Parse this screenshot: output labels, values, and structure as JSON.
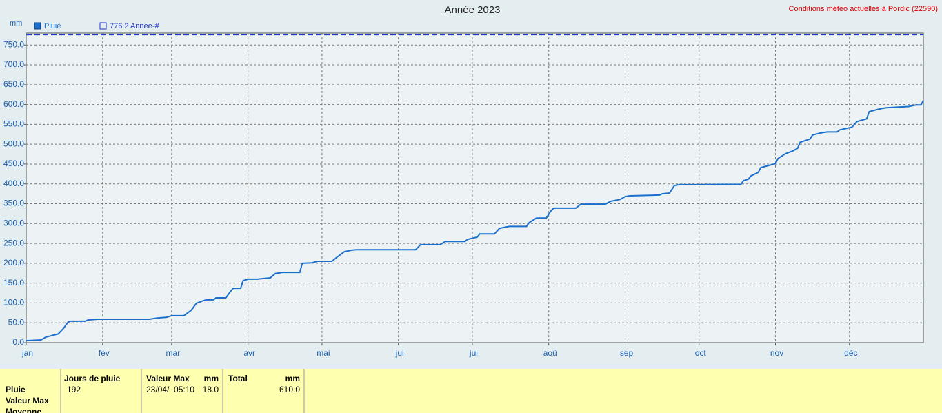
{
  "chart_data": {
    "type": "line",
    "title": "Année 2023",
    "y_label": "mm",
    "xlim": [
      0,
      364
    ],
    "xticks": [
      {
        "value": 0,
        "label": "jan"
      },
      {
        "value": 31,
        "label": "fév"
      },
      {
        "value": 59,
        "label": "mar"
      },
      {
        "value": 90,
        "label": "avr"
      },
      {
        "value": 120,
        "label": "mai"
      },
      {
        "value": 151,
        "label": "jui"
      },
      {
        "value": 181,
        "label": "jui"
      },
      {
        "value": 212,
        "label": "aoû"
      },
      {
        "value": 243,
        "label": "sep"
      },
      {
        "value": 273,
        "label": "oct"
      },
      {
        "value": 304,
        "label": "nov"
      },
      {
        "value": 334,
        "label": "déc"
      }
    ],
    "ylim": [
      0,
      780
    ],
    "yticks": [
      {
        "value": 0,
        "label": "0.0"
      },
      {
        "value": 50,
        "label": "50.0"
      },
      {
        "value": 100,
        "label": "100.0"
      },
      {
        "value": 150,
        "label": "150.0"
      },
      {
        "value": 200,
        "label": "200.0"
      },
      {
        "value": 250,
        "label": "250.0"
      },
      {
        "value": 300,
        "label": "300.0"
      },
      {
        "value": 350,
        "label": "350.0"
      },
      {
        "value": 400,
        "label": "400.0"
      },
      {
        "value": 450,
        "label": "450.0"
      },
      {
        "value": 500,
        "label": "500.0"
      },
      {
        "value": 550,
        "label": "550.0"
      },
      {
        "value": 600,
        "label": "600.0"
      },
      {
        "value": 650,
        "label": "650.0"
      },
      {
        "value": 700,
        "label": "700.0"
      },
      {
        "value": 750,
        "label": "750.0"
      }
    ],
    "grid": true,
    "series": [
      {
        "name": "Pluie",
        "color": "#1a6fcc",
        "dashed": false,
        "x": [
          0,
          6,
          8,
          13,
          15,
          17,
          18,
          24,
          25,
          29,
          50,
          53,
          57,
          59,
          64,
          67,
          69,
          71,
          73,
          76,
          77,
          81,
          83,
          84,
          87,
          88,
          90,
          94,
          95,
          99,
          101,
          104,
          111,
          112,
          116,
          118,
          124,
          126,
          129,
          132,
          134,
          158,
          160,
          168,
          170,
          178,
          179,
          183,
          184,
          190,
          192,
          196,
          203,
          204,
          207,
          211,
          213,
          214,
          223,
          225,
          235,
          237,
          241,
          243,
          245,
          257,
          258,
          261,
          263,
          265,
          290,
          291,
          293,
          294,
          297,
          298,
          301,
          304,
          305,
          308,
          311,
          313,
          314,
          318,
          319,
          322,
          325,
          329,
          330,
          335,
          337,
          341,
          342,
          345,
          347,
          349,
          358,
          361,
          363,
          364
        ],
        "values": [
          5,
          7,
          14,
          22,
          35,
          52,
          54,
          54,
          57,
          59,
          59,
          62,
          64,
          68,
          68,
          82,
          99,
          104,
          108,
          108,
          113,
          113,
          130,
          137,
          137,
          156,
          160,
          160,
          161,
          163,
          174,
          177,
          177,
          200,
          201,
          205,
          205,
          215,
          229,
          233,
          234,
          234,
          247,
          247,
          255,
          255,
          260,
          266,
          274,
          274,
          288,
          293,
          293,
          302,
          314,
          314,
          333,
          339,
          339,
          349,
          349,
          356,
          361,
          368,
          370,
          372,
          375,
          377,
          396,
          398,
          399,
          408,
          412,
          420,
          429,
          441,
          446,
          451,
          464,
          476,
          483,
          490,
          505,
          513,
          523,
          528,
          531,
          531,
          536,
          543,
          557,
          564,
          582,
          587,
          590,
          592,
          595,
          599,
          599,
          610
        ]
      },
      {
        "name": "776.2 Année-#",
        "color": "#2233cc",
        "dashed": true,
        "x": [
          0,
          364
        ],
        "values": [
          776.2,
          776.2
        ]
      }
    ]
  },
  "header_link": "Conditions météo actuelles à Pordic (22590)",
  "stats": {
    "columns": [
      "Jours de pluie",
      "Valeur Max",
      "mm",
      "Total",
      "mm"
    ],
    "row_labels": [
      "Pluie",
      "Valeur Max",
      "Moyenne"
    ],
    "pluie": {
      "days": "192",
      "max_time": "23/04/  05:10",
      "max_value": "18.0",
      "total": "610.0"
    }
  }
}
